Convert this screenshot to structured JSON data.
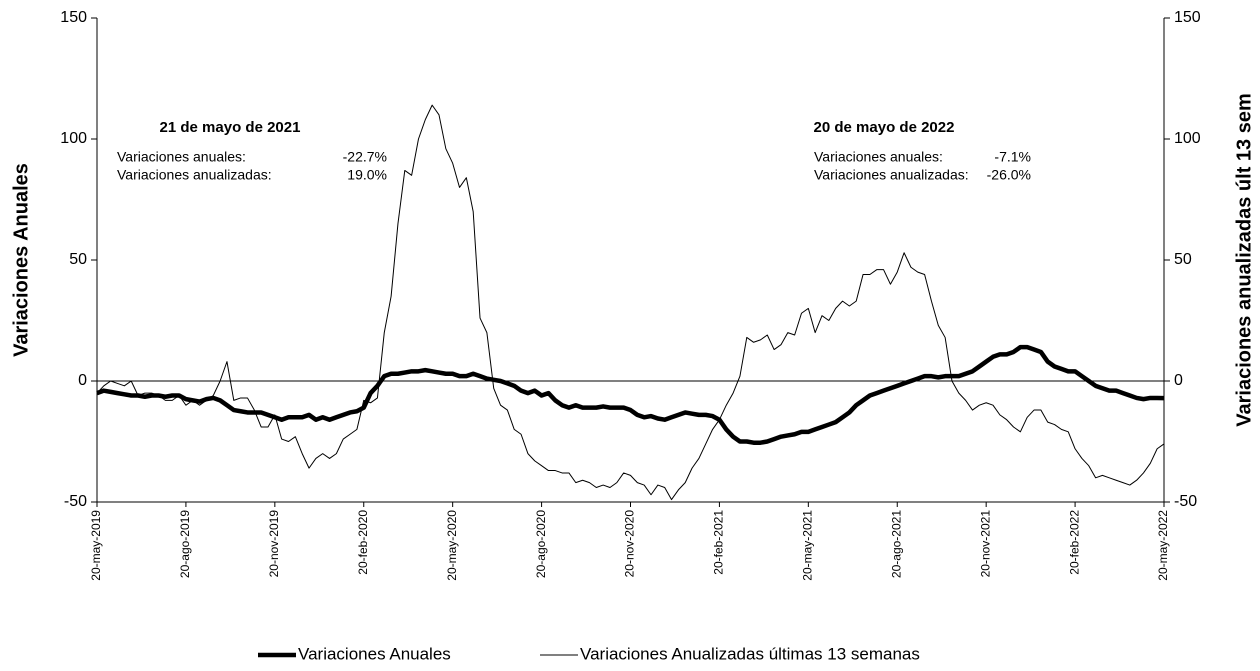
{
  "chart_data": {
    "type": "line",
    "categories": [
      "20-may-2019",
      null,
      null,
      null,
      null,
      null,
      null,
      null,
      null,
      null,
      null,
      null,
      null,
      "20-ago-2019",
      null,
      null,
      null,
      null,
      null,
      null,
      null,
      null,
      null,
      null,
      null,
      null,
      "20-nov-2019",
      null,
      null,
      null,
      null,
      null,
      null,
      null,
      null,
      null,
      null,
      null,
      null,
      "20-feb-2020",
      null,
      null,
      null,
      null,
      null,
      null,
      null,
      null,
      null,
      null,
      null,
      null,
      "20-may-2020",
      null,
      null,
      null,
      null,
      null,
      null,
      null,
      null,
      null,
      null,
      null,
      null,
      "20-ago-2020",
      null,
      null,
      null,
      null,
      null,
      null,
      null,
      null,
      null,
      null,
      null,
      null,
      "20-nov-2020",
      null,
      null,
      null,
      null,
      null,
      null,
      null,
      null,
      null,
      null,
      null,
      null,
      "20-feb-2021",
      null,
      null,
      null,
      null,
      null,
      null,
      null,
      null,
      null,
      null,
      null,
      null,
      "20-may-2021",
      null,
      null,
      null,
      null,
      null,
      null,
      null,
      null,
      null,
      null,
      null,
      null,
      "20-ago-2021",
      null,
      null,
      null,
      null,
      null,
      null,
      null,
      null,
      null,
      null,
      null,
      null,
      "20-nov-2021",
      null,
      null,
      null,
      null,
      null,
      null,
      null,
      null,
      null,
      null,
      null,
      null,
      "20-feb-2022",
      null,
      null,
      null,
      null,
      null,
      null,
      null,
      null,
      null,
      null,
      null,
      null,
      "20-may-2022"
    ],
    "series": [
      {
        "name": "Variaciones Anuales",
        "color": "#000000",
        "axis": "y",
        "values": [
          -5,
          -4,
          -4.5,
          -5,
          -5.5,
          -6,
          -6,
          -6.5,
          -6,
          -6,
          -6.5,
          -6,
          -6,
          -7.5,
          -8,
          -8.5,
          -7.5,
          -7,
          -8,
          -10,
          -12,
          -12.5,
          -13,
          -13,
          -13,
          -14,
          -15,
          -16,
          -15,
          -15,
          -15,
          -14,
          -16,
          -15,
          -16,
          -15,
          -14,
          -13,
          -12.5,
          -11,
          -5,
          -2,
          2,
          3,
          3,
          3.5,
          4,
          4,
          4.5,
          4,
          3.5,
          3,
          3,
          2,
          2,
          3,
          2,
          1,
          0.5,
          0,
          -1,
          -2,
          -4,
          -5,
          -4,
          -6,
          -5,
          -8,
          -10,
          -11,
          -10,
          -11,
          -11,
          -11,
          -10.5,
          -11,
          -11,
          -11,
          -12,
          -14,
          -15,
          -14.5,
          -15.5,
          -16,
          -15,
          -14,
          -13,
          -13.5,
          -14,
          -14,
          -14.5,
          -16,
          -20,
          -23,
          -25,
          -25,
          -25.5,
          -25.5,
          -25,
          -24,
          -23,
          -22.5,
          -22,
          -21,
          -21,
          -20,
          -19,
          -18,
          -17,
          -15,
          -13,
          -10,
          -8,
          -6,
          -5,
          -4,
          -3,
          -2,
          -1,
          0,
          1,
          2,
          2,
          1.5,
          2,
          2,
          2,
          3,
          4,
          6,
          8,
          10,
          11,
          11,
          12,
          14,
          14,
          13,
          12,
          8,
          6,
          5,
          4,
          4,
          2,
          0,
          -2,
          -3,
          -4,
          -4,
          -5,
          -6,
          -7,
          -7.5,
          -7,
          -7,
          -7.1
        ]
      },
      {
        "name": "Variaciones Anualizadas últimas 13 semanas",
        "color": "#000000",
        "axis": "y2",
        "values": [
          -5,
          -2,
          0,
          -1,
          -2,
          0,
          -6,
          -5,
          -5,
          -6,
          -8,
          -8,
          -6,
          -10,
          -8,
          -10,
          -8,
          -6,
          0,
          8,
          -8,
          -7,
          -7,
          -12,
          -19,
          -19,
          -14,
          -24,
          -25,
          -23,
          -30,
          -36,
          -32,
          -30,
          -32,
          -30,
          -24,
          -22,
          -20,
          -8,
          -9,
          -7,
          20,
          35,
          65,
          87,
          85,
          100,
          108,
          114,
          110,
          96,
          90,
          80,
          84,
          70,
          26,
          20,
          -3,
          -10,
          -12,
          -20,
          -22,
          -30,
          -33,
          -35,
          -37,
          -37,
          -38,
          -38,
          -42,
          -41,
          -42,
          -44,
          -43,
          -44,
          -42,
          -38,
          -39,
          -42,
          -43,
          -47,
          -43,
          -44,
          -49,
          -45,
          -42,
          -36,
          -32,
          -26,
          -20,
          -16,
          -10,
          -5,
          2,
          18,
          16,
          17,
          19,
          13,
          15,
          20,
          19,
          28,
          30,
          20,
          27,
          25,
          30,
          33,
          31,
          33,
          44,
          44,
          46,
          46,
          40,
          45,
          53,
          47,
          45,
          44,
          33,
          23,
          18,
          0,
          -5,
          -8,
          -12,
          -10,
          -9,
          -10,
          -14,
          -16,
          -19,
          -21,
          -15,
          -12,
          -12,
          -17,
          -18,
          -20,
          -21,
          -28,
          -32,
          -35,
          -40,
          -39,
          -40,
          -41,
          -42,
          -43,
          -41,
          -38,
          -34,
          -28,
          -26
        ]
      }
    ],
    "ylabel": "Variaciones Anuales",
    "y2label": "Variaciones anualizadas últ 13 sem",
    "ylim": [
      -50,
      150
    ],
    "yticks": [
      -50,
      0,
      50,
      100,
      150
    ],
    "y2lim": [
      -50,
      150
    ],
    "y2ticks": [
      -50,
      0,
      50,
      100,
      150
    ],
    "legend": "bottom",
    "annotations": [
      {
        "title": "21 de mayo de 2021",
        "rows": [
          [
            "Variaciones anuales:",
            "-22.7%"
          ],
          [
            "Variaciones anualizadas:",
            "19.0%"
          ]
        ]
      },
      {
        "title": "20 de mayo de 2022",
        "rows": [
          [
            "Variaciones anuales:",
            "-7.1%"
          ],
          [
            "Variaciones anualizadas:",
            "-26.0%"
          ]
        ]
      }
    ]
  }
}
